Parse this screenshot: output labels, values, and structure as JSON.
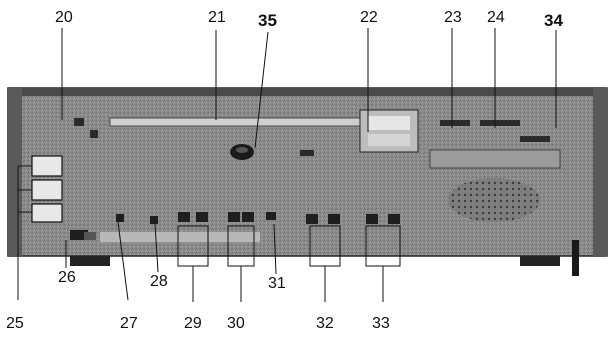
{
  "callouts_top": [
    "20",
    "21",
    "35",
    "22",
    "23",
    "24",
    "34"
  ],
  "callouts_bottom": [
    "25",
    "26",
    "27",
    "28",
    "29",
    "30",
    "31",
    "32",
    "33"
  ],
  "colors": {
    "panel": "#8c8c8c",
    "panel_dark": "#3a3a3a",
    "ink": "#111111"
  }
}
